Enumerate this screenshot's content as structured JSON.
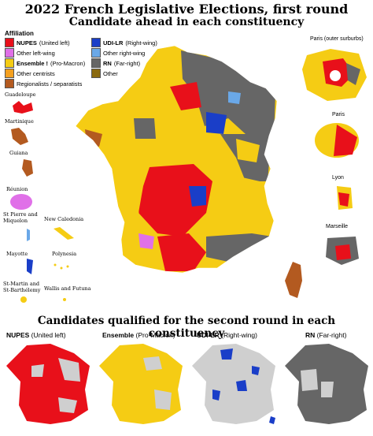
{
  "title": "2022 French Legislative Elections, first round",
  "subtitle": "Candidate ahead in each constituency",
  "legend": {
    "heading": "Affiliation",
    "items": [
      {
        "bold": "NUPES",
        "rest": " (United left)",
        "color": "#e8101a"
      },
      {
        "bold": "UDI-LR",
        "rest": " (Right-wing)",
        "color": "#1a3ec8"
      },
      {
        "bold": "",
        "rest": "Other left-wing",
        "color": "#e070e8"
      },
      {
        "bold": "",
        "rest": "Other right-wing",
        "color": "#6aa8e8"
      },
      {
        "bold": "Ensemble !",
        "rest": " (Pro-Macron)",
        "color": "#f5cc14"
      },
      {
        "bold": "RN",
        "rest": " (Far-right)",
        "color": "#666666"
      },
      {
        "bold": "",
        "rest": "Other centrists",
        "color": "#f4a020"
      },
      {
        "bold": "",
        "rest": "Other",
        "color": "#8a6a10"
      },
      {
        "bold": "",
        "rest": "Regionalists / separatists",
        "color": "#b35a20"
      }
    ]
  },
  "overseas": [
    "Guadeloupe",
    "Martinique",
    "Guiana",
    "Réunion",
    "St Pierre and Miquelon",
    "Mayotte",
    "St-Martin and St-Barthélemy",
    "New Caledonia",
    "Polynesia",
    "Wallis and Futuna"
  ],
  "insets": [
    "Paris (outer surburbs)",
    "Paris",
    "Lyon",
    "Marseille"
  ],
  "second_round_title": "Candidates qualified for the second round in each constituency",
  "small_maps": [
    {
      "bold": "NUPES",
      "rest": " (United left)",
      "color": "#e8101a"
    },
    {
      "bold": "Ensemble",
      "rest": " (Pro-Macron)",
      "color": "#f5cc14"
    },
    {
      "bold": "UDI-LR",
      "rest": " (Right-wing)",
      "color": "#1a3ec8"
    },
    {
      "bold": "RN",
      "rest": " (Far-right)",
      "color": "#666666"
    }
  ],
  "colors": {
    "nupes": "#e8101a",
    "ensemble": "#f5cc14",
    "rn": "#666666",
    "udi": "#1a3ec8",
    "other_left": "#e070e8",
    "other_right": "#6aa8e8",
    "regional": "#b35a20",
    "other_centrist": "#f4a020",
    "other": "#8a6a10",
    "grey_bg": "#cfcfcf"
  }
}
